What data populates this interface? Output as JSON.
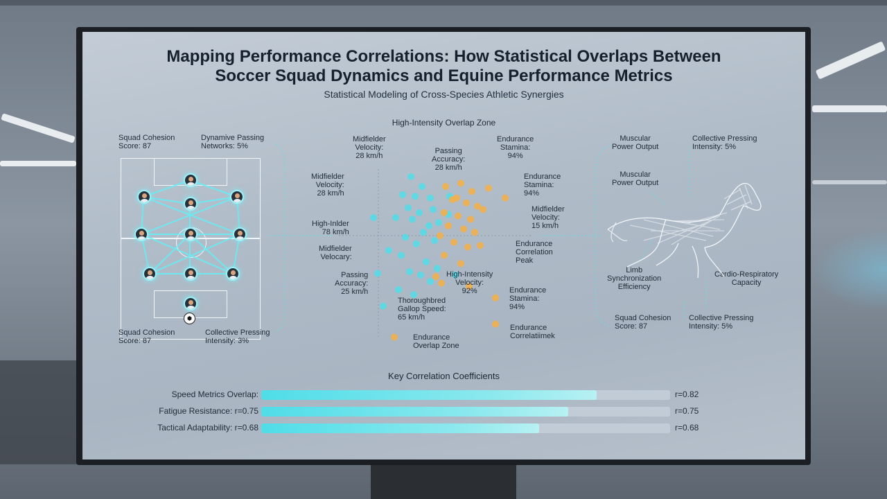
{
  "title_line1": "Mapping Performance Correlations: How Statistical Overlaps Between",
  "title_line2": "Soccer Squad Dynamics and Equine Performance Metrics",
  "subtitle": "Statistical Modeling of Cross-Species Athletic Synergies",
  "colors": {
    "cyan": "#57dbe6",
    "orange": "#f2b04b",
    "ink": "#1f2a36"
  },
  "left_panel": {
    "top_left": "Squad Cohesion\nScore: 87",
    "top_right": "Dynamive Passing\nNetworks: 5%",
    "bottom_left": "Squad Cohesion\nScore: 87",
    "bottom_right": "Collective Pressing\nIntensity: 3%",
    "icons": [
      "soccer-ball-icon",
      "player-avatar-icon"
    ]
  },
  "scatter": {
    "heading": "High-Intensity Overlap Zone",
    "labels": [
      "Midfielder\nVelocity:\n28 km/h",
      "Passing\nAccuracy:\n28 km/h",
      "Endurance\nStamina:\n94%",
      "Midfielder\nVelocity:\n28 km/h",
      "Endurance\nStamina:\n94%",
      "High-Inlder\n78 km/h",
      "Midfielder\nVelocity:\n15 km/h",
      "Midfielder\nVelocary:",
      "Endurance\nCorrelation\nPeak",
      "Passing\nAccuracy:\n25 km/h",
      "High-Intensity\nVelocity:\n92%",
      "Endurance\nStamina:\n94%",
      "Thoroughbred\nGallop Speed:\n65 km/h",
      "Endurance\nCorrelatiimek",
      "Endurance\nOverlap Zone"
    ]
  },
  "right_panel": {
    "labels": [
      "Muscular\nPower Output",
      "Collective Pressing\nIntensity: 5%",
      "Muscular\nPower Output",
      "Limb\nSynchronization\nEfficiency",
      "Cardio-Respiratory\nCapacity",
      "Squad Cohesion\nScore: 87",
      "Collective Pressing\nIntensity: 5%"
    ],
    "icons": [
      "horse-wireframe-icon"
    ]
  },
  "coefficients": {
    "heading": "Key Correlation Coefficients",
    "rows": [
      {
        "label": "Speed Metrics Overlap:",
        "value_text": "r=0.82",
        "value": 0.82
      },
      {
        "label": "Fatigue Resistance: r=0.75",
        "value_text": "r=0.75",
        "value": 0.75
      },
      {
        "label": "Tactical Adaptability: r=0.68",
        "value_text": "r=0.68",
        "value": 0.68
      }
    ]
  },
  "chart_data": [
    {
      "type": "bar",
      "title": "Key Correlation Coefficients",
      "categories": [
        "Speed Metrics Overlap",
        "Fatigue Resistance",
        "Tactical Adaptability"
      ],
      "values": [
        0.82,
        0.75,
        0.68
      ],
      "ylim": [
        0,
        1
      ]
    },
    {
      "type": "scatter",
      "title": "High-Intensity Overlap Zone",
      "series": [
        {
          "color": "#57dbe6",
          "points": [
            [
              2.8,
              9.2
            ],
            [
              3.6,
              8.6
            ],
            [
              2.2,
              8.1
            ],
            [
              3.1,
              8.0
            ],
            [
              4.2,
              7.9
            ],
            [
              2.6,
              7.3
            ],
            [
              3.4,
              7.0
            ],
            [
              4.4,
              7.2
            ],
            [
              1.7,
              6.7
            ],
            [
              2.9,
              6.6
            ],
            [
              4.1,
              6.2
            ],
            [
              4.8,
              6.4
            ],
            [
              3.7,
              5.8
            ],
            [
              2.4,
              5.5
            ],
            [
              3.2,
              5.1
            ],
            [
              4.5,
              5.3
            ],
            [
              1.2,
              4.7
            ],
            [
              2.1,
              4.4
            ],
            [
              3.9,
              4.0
            ],
            [
              4.7,
              3.6
            ],
            [
              2.7,
              3.4
            ],
            [
              3.5,
              3.2
            ],
            [
              1.9,
              2.3
            ],
            [
              3.0,
              2.0
            ],
            [
              4.2,
              2.8
            ],
            [
              0.4,
              3.3
            ],
            [
              5.6,
              8.0
            ],
            [
              6.0,
              3.2
            ],
            [
              0.1,
              6.7
            ],
            [
              0.8,
              1.3
            ],
            [
              5.5,
              6.9
            ]
          ]
        },
        {
          "color": "#f2b04b",
          "points": [
            [
              5.3,
              8.6
            ],
            [
              6.4,
              8.8
            ],
            [
              7.2,
              8.3
            ],
            [
              5.8,
              7.8
            ],
            [
              6.8,
              7.6
            ],
            [
              7.6,
              7.4
            ],
            [
              5.2,
              7.0
            ],
            [
              6.2,
              6.8
            ],
            [
              7.1,
              6.6
            ],
            [
              8.0,
              7.2
            ],
            [
              5.5,
              6.2
            ],
            [
              6.6,
              6.0
            ],
            [
              7.4,
              5.8
            ],
            [
              4.9,
              5.6
            ],
            [
              5.9,
              5.2
            ],
            [
              6.9,
              4.9
            ],
            [
              7.8,
              5.0
            ],
            [
              5.2,
              4.4
            ],
            [
              6.4,
              3.9
            ],
            [
              4.6,
              3.1
            ],
            [
              8.4,
              8.5
            ],
            [
              9.6,
              7.9
            ],
            [
              8.9,
              1.8
            ],
            [
              8.9,
              0.2
            ],
            [
              1.6,
              -0.6
            ],
            [
              5.0,
              2.7
            ],
            [
              7.0,
              2.5
            ],
            [
              6.1,
              7.9
            ]
          ]
        }
      ]
    }
  ]
}
